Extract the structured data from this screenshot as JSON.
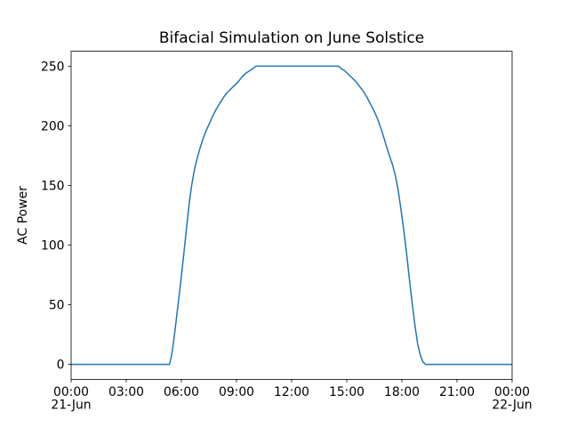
{
  "figure": {
    "background": "#ffffff",
    "text_color": "#000000",
    "spine_color": "#000000"
  },
  "chart_data": {
    "type": "line",
    "title": "Bifacial Simulation on June Solstice",
    "xlabel": "",
    "ylabel": "AC Power",
    "xlim": [
      0,
      24
    ],
    "ylim": [
      -12.5,
      262.5
    ],
    "grid": false,
    "legend": null,
    "x_unit": "hours since 21-Jun 00:00",
    "x_ticks": [
      {
        "t": 0,
        "label": "00:00",
        "sublabel": "21-Jun"
      },
      {
        "t": 3,
        "label": "03:00"
      },
      {
        "t": 6,
        "label": "06:00"
      },
      {
        "t": 9,
        "label": "09:00"
      },
      {
        "t": 12,
        "label": "12:00"
      },
      {
        "t": 15,
        "label": "15:00"
      },
      {
        "t": 18,
        "label": "18:00"
      },
      {
        "t": 21,
        "label": "21:00"
      },
      {
        "t": 24,
        "label": "00:00",
        "sublabel": "22-Jun"
      }
    ],
    "y_ticks": [
      0,
      50,
      100,
      150,
      200,
      250
    ],
    "series": [
      {
        "name": "AC Power",
        "color": "#1f77b4",
        "line_width": 1.5,
        "points": [
          [
            0,
            0
          ],
          [
            0.25,
            0
          ],
          [
            0.5,
            0
          ],
          [
            0.75,
            0
          ],
          [
            1,
            0
          ],
          [
            1.25,
            0
          ],
          [
            1.5,
            0
          ],
          [
            1.75,
            0
          ],
          [
            2,
            0
          ],
          [
            2.25,
            0
          ],
          [
            2.5,
            0
          ],
          [
            2.75,
            0
          ],
          [
            3,
            0
          ],
          [
            3.25,
            0
          ],
          [
            3.5,
            0
          ],
          [
            3.75,
            0
          ],
          [
            4,
            0
          ],
          [
            4.25,
            0
          ],
          [
            4.5,
            0
          ],
          [
            4.75,
            0
          ],
          [
            5,
            0
          ],
          [
            5.25,
            0
          ],
          [
            5.35,
            0
          ],
          [
            5.45,
            6
          ],
          [
            5.55,
            16
          ],
          [
            5.65,
            28
          ],
          [
            5.75,
            41
          ],
          [
            5.85,
            54
          ],
          [
            5.95,
            67
          ],
          [
            6.05,
            81
          ],
          [
            6.15,
            95
          ],
          [
            6.25,
            110
          ],
          [
            6.35,
            124
          ],
          [
            6.45,
            138
          ],
          [
            6.55,
            149
          ],
          [
            6.65,
            158
          ],
          [
            6.75,
            166
          ],
          [
            6.9,
            175
          ],
          [
            7.05,
            183
          ],
          [
            7.2,
            190
          ],
          [
            7.35,
            196
          ],
          [
            7.5,
            201
          ],
          [
            7.7,
            208
          ],
          [
            7.9,
            214
          ],
          [
            8.1,
            219
          ],
          [
            8.3,
            224
          ],
          [
            8.5,
            228
          ],
          [
            8.7,
            231
          ],
          [
            8.9,
            234
          ],
          [
            9.1,
            237
          ],
          [
            9.3,
            241
          ],
          [
            9.5,
            244
          ],
          [
            9.7,
            246
          ],
          [
            9.9,
            248
          ],
          [
            10.05,
            250
          ],
          [
            10.5,
            250
          ],
          [
            11,
            250
          ],
          [
            11.5,
            250
          ],
          [
            12,
            250
          ],
          [
            12.5,
            250
          ],
          [
            13,
            250
          ],
          [
            13.5,
            250
          ],
          [
            14,
            250
          ],
          [
            14.55,
            250
          ],
          [
            14.7,
            248
          ],
          [
            14.9,
            246
          ],
          [
            15.1,
            243
          ],
          [
            15.3,
            240
          ],
          [
            15.5,
            237
          ],
          [
            15.7,
            233
          ],
          [
            15.9,
            229
          ],
          [
            16.1,
            224
          ],
          [
            16.3,
            218
          ],
          [
            16.5,
            212
          ],
          [
            16.7,
            205
          ],
          [
            16.9,
            196
          ],
          [
            17.1,
            186
          ],
          [
            17.3,
            176
          ],
          [
            17.5,
            167
          ],
          [
            17.65,
            158
          ],
          [
            17.8,
            146
          ],
          [
            17.95,
            130
          ],
          [
            18.1,
            113
          ],
          [
            18.25,
            94
          ],
          [
            18.4,
            73
          ],
          [
            18.55,
            53
          ],
          [
            18.7,
            34
          ],
          [
            18.85,
            18
          ],
          [
            19.0,
            8
          ],
          [
            19.15,
            2
          ],
          [
            19.3,
            0
          ],
          [
            19.5,
            0
          ],
          [
            19.75,
            0
          ],
          [
            20,
            0
          ],
          [
            20.25,
            0
          ],
          [
            20.5,
            0
          ],
          [
            20.75,
            0
          ],
          [
            21,
            0
          ],
          [
            21.25,
            0
          ],
          [
            21.5,
            0
          ],
          [
            21.75,
            0
          ],
          [
            22,
            0
          ],
          [
            22.25,
            0
          ],
          [
            22.5,
            0
          ],
          [
            22.75,
            0
          ],
          [
            23,
            0
          ],
          [
            23.25,
            0
          ],
          [
            23.5,
            0
          ],
          [
            23.75,
            0
          ],
          [
            24,
            0
          ]
        ]
      }
    ]
  }
}
